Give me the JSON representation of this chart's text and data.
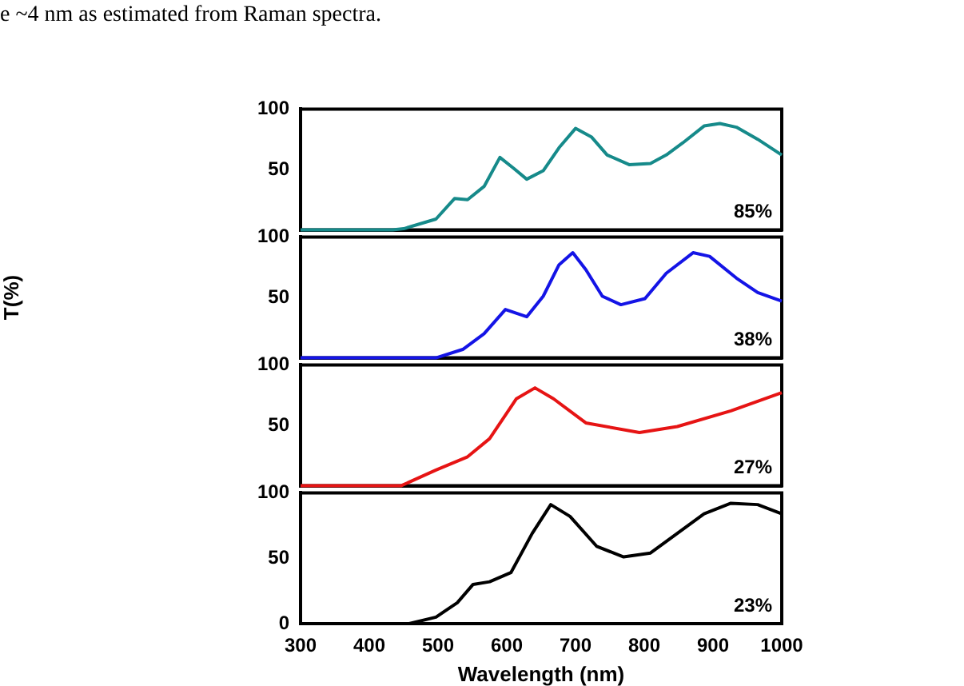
{
  "chart_data": [
    {
      "type": "other",
      "annotations": [
        "e ~4 nm as estimated from Raman spectra."
      ]
    },
    {
      "type": "line",
      "x": [
        300,
        434,
        450,
        497,
        524,
        543,
        567,
        590,
        610,
        629,
        653,
        676,
        700,
        723,
        746,
        778,
        809,
        832,
        856,
        887,
        910,
        934,
        965,
        1000
      ],
      "series": [
        {
          "color": "#168a8a",
          "values": [
            0,
            0,
            1,
            9,
            26,
            25,
            36,
            60,
            51,
            42,
            49,
            68,
            84,
            77,
            62,
            54,
            55,
            62,
            72,
            86,
            88,
            85,
            75,
            62
          ]
        }
      ],
      "xlim": [
        300,
        1000
      ],
      "xticks": [
        300,
        400,
        500,
        600,
        700,
        800,
        900,
        1000
      ],
      "ylim": [
        0,
        100
      ],
      "yticks": [
        50,
        100
      ],
      "tick_labels": "y",
      "annotations": [
        "85%"
      ]
    },
    {
      "type": "line",
      "x": [
        300,
        497,
        536,
        567,
        598,
        629,
        653,
        676,
        696,
        715,
        739,
        766,
        801,
        832,
        871,
        895,
        934,
        965,
        1000
      ],
      "series": [
        {
          "color": "#1414e6",
          "values": [
            0,
            0,
            7,
            20,
            40,
            34,
            51,
            77,
            87,
            73,
            51,
            44,
            49,
            70,
            87,
            84,
            66,
            54,
            47
          ]
        }
      ],
      "xlim": [
        300,
        1000
      ],
      "xticks": [
        300,
        400,
        500,
        600,
        700,
        800,
        900,
        1000
      ],
      "ylim": [
        0,
        100
      ],
      "yticks": [
        50,
        100
      ],
      "tick_labels": "y",
      "ylabel": "T(%)",
      "annotations": [
        "38%"
      ]
    },
    {
      "type": "line",
      "x": [
        300,
        446,
        497,
        543,
        575,
        614,
        641,
        668,
        715,
        793,
        848,
        926,
        1000
      ],
      "series": [
        {
          "color": "#e61414",
          "values": [
            0,
            0,
            13,
            24,
            39,
            72,
            81,
            72,
            52,
            44,
            49,
            62,
            77
          ]
        }
      ],
      "xlim": [
        300,
        1000
      ],
      "xticks": [
        300,
        400,
        500,
        600,
        700,
        800,
        900,
        1000
      ],
      "ylim": [
        0,
        100
      ],
      "yticks": [
        50,
        100
      ],
      "tick_labels": "y",
      "annotations": [
        "27%"
      ]
    },
    {
      "type": "line",
      "x": [
        300,
        458,
        497,
        528,
        551,
        575,
        606,
        637,
        664,
        692,
        731,
        770,
        809,
        848,
        887,
        926,
        965,
        1000
      ],
      "series": [
        {
          "color": "#000000",
          "values": [
            0,
            0,
            5,
            16,
            30,
            32,
            39,
            69,
            91,
            82,
            59,
            51,
            54,
            69,
            84,
            92,
            91,
            84
          ]
        }
      ],
      "xlim": [
        300,
        1000
      ],
      "xticks": [
        300,
        400,
        500,
        600,
        700,
        800,
        900,
        1000
      ],
      "ylim": [
        0,
        100
      ],
      "yticks": [
        0,
        50,
        100
      ],
      "xlabel": "Wavelength (nm)",
      "annotations": [
        "23%"
      ]
    }
  ]
}
